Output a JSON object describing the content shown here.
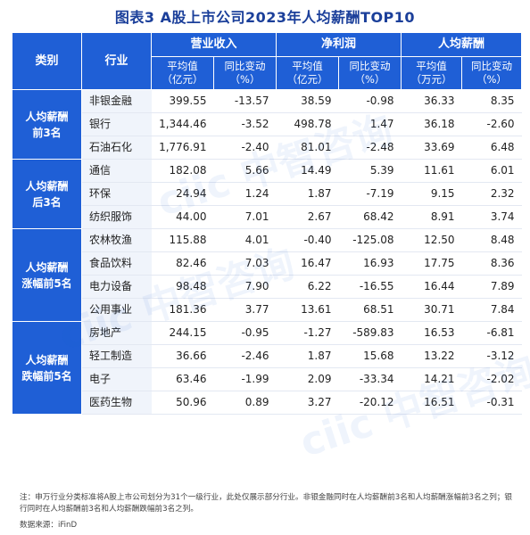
{
  "title": "图表3  A股上市公司2023年人均薪酬TOP10",
  "headers": {
    "category": "类别",
    "industry": "行业",
    "groups": [
      "营业收入",
      "净利润",
      "人均薪酬"
    ],
    "sub": [
      {
        "a": "平均值",
        "b": "（亿元）"
      },
      {
        "a": "同比变动",
        "b": "（%）"
      },
      {
        "a": "平均值",
        "b": "（亿元）"
      },
      {
        "a": "同比变动",
        "b": "（%）"
      },
      {
        "a": "平均值",
        "b": "（万元）"
      },
      {
        "a": "同比变动",
        "b": "（%）"
      }
    ]
  },
  "groups": [
    {
      "label_lines": [
        "人均薪酬",
        "前3名"
      ],
      "rows": [
        {
          "industry": "非银金融",
          "rev": "399.55",
          "rev_chg": "-13.57",
          "np": "38.59",
          "np_chg": "-0.98",
          "pay": "36.33",
          "pay_chg": "8.35"
        },
        {
          "industry": "银行",
          "rev": "1,344.46",
          "rev_chg": "-3.52",
          "np": "498.78",
          "np_chg": "1.47",
          "pay": "36.18",
          "pay_chg": "-2.60"
        },
        {
          "industry": "石油石化",
          "rev": "1,776.91",
          "rev_chg": "-2.40",
          "np": "81.01",
          "np_chg": "-2.48",
          "pay": "33.69",
          "pay_chg": "6.48"
        }
      ]
    },
    {
      "label_lines": [
        "人均薪酬",
        "后3名"
      ],
      "rows": [
        {
          "industry": "通信",
          "rev": "182.08",
          "rev_chg": "5.66",
          "np": "14.49",
          "np_chg": "5.39",
          "pay": "11.61",
          "pay_chg": "6.01"
        },
        {
          "industry": "环保",
          "rev": "24.94",
          "rev_chg": "1.24",
          "np": "1.87",
          "np_chg": "-7.19",
          "pay": "9.15",
          "pay_chg": "2.32"
        },
        {
          "industry": "纺织服饰",
          "rev": "44.00",
          "rev_chg": "7.01",
          "np": "2.67",
          "np_chg": "68.42",
          "pay": "8.91",
          "pay_chg": "3.74"
        }
      ]
    },
    {
      "label_lines": [
        "人均薪酬",
        "涨幅前5名"
      ],
      "rows": [
        {
          "industry": "农林牧渔",
          "rev": "115.88",
          "rev_chg": "4.01",
          "np": "-0.40",
          "np_chg": "-125.08",
          "pay": "12.50",
          "pay_chg": "8.48"
        },
        {
          "industry": "食品饮料",
          "rev": "82.46",
          "rev_chg": "7.03",
          "np": "16.47",
          "np_chg": "16.93",
          "pay": "17.75",
          "pay_chg": "8.36"
        },
        {
          "industry": "电力设备",
          "rev": "98.48",
          "rev_chg": "7.90",
          "np": "6.22",
          "np_chg": "-16.55",
          "pay": "16.44",
          "pay_chg": "7.89"
        },
        {
          "industry": "公用事业",
          "rev": "181.36",
          "rev_chg": "3.77",
          "np": "13.61",
          "np_chg": "68.51",
          "pay": "30.71",
          "pay_chg": "7.84"
        }
      ]
    },
    {
      "label_lines": [
        "人均薪酬",
        "跌幅前5名"
      ],
      "rows": [
        {
          "industry": "房地产",
          "rev": "244.15",
          "rev_chg": "-0.95",
          "np": "-1.27",
          "np_chg": "-589.83",
          "pay": "16.53",
          "pay_chg": "-6.81"
        },
        {
          "industry": "轻工制造",
          "rev": "36.66",
          "rev_chg": "-2.46",
          "np": "1.87",
          "np_chg": "15.68",
          "pay": "13.22",
          "pay_chg": "-3.12"
        },
        {
          "industry": "电子",
          "rev": "63.46",
          "rev_chg": "-1.99",
          "np": "2.09",
          "np_chg": "-33.34",
          "pay": "14.21",
          "pay_chg": "-2.02"
        },
        {
          "industry": "医药生物",
          "rev": "50.96",
          "rev_chg": "0.89",
          "np": "3.27",
          "np_chg": "-20.12",
          "pay": "16.51",
          "pay_chg": "-0.31"
        }
      ]
    }
  ],
  "note": "注：申万行业分类标准将A股上市公司划分为31个一级行业，此处仅展示部分行业。非银金融同时在人均薪酬前3名和人均薪酬涨幅前3名之列；银行同时在人均薪酬前3名和人均薪酬跌幅前3名之列。",
  "source": "数据来源：iFinD",
  "watermark": "ciic 中智咨询",
  "colors": {
    "header_bg": "#1f5fd6",
    "title": "#1b3f9a"
  }
}
